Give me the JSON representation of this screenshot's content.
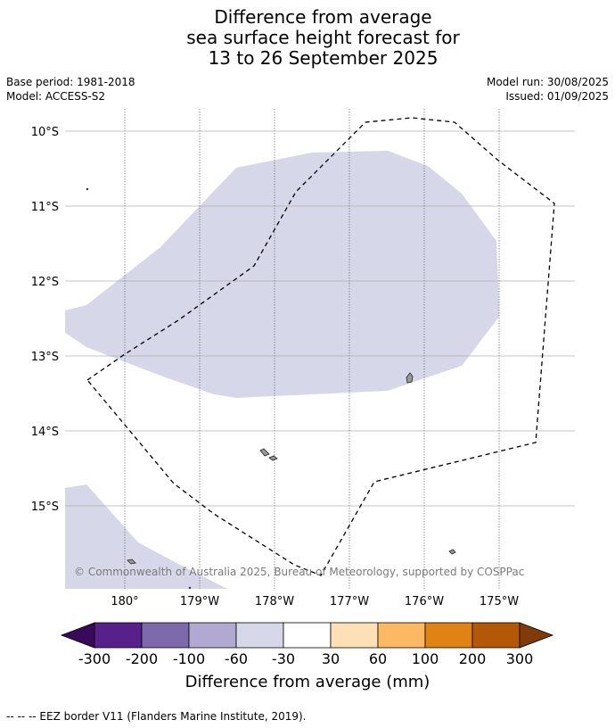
{
  "title": {
    "line1": "Difference from average",
    "line2": "sea surface height forecast for",
    "line3": "13 to 26 September 2025"
  },
  "meta": {
    "base_period": "Base period: 1981-2018",
    "model": "Model: ACCESS-S2",
    "model_run": "Model run: 30/08/2025",
    "issued": "Issued: 01/09/2025"
  },
  "map": {
    "lat_labels": [
      "10°S",
      "11°S",
      "12°S",
      "13°S",
      "14°S",
      "15°S"
    ],
    "lon_labels": [
      "180°",
      "179°W",
      "178°W",
      "177°W",
      "176°W",
      "175°W"
    ],
    "copyright": "© Commonwealth of Australia 2025, Bureau of Meteorology, supported by COSPPac",
    "anomaly_fill_color": "#d6d7e8",
    "anomaly_class": "-60 to -30"
  },
  "colorbar": {
    "labels": [
      "-300",
      "-200",
      "-100",
      "-60",
      "-30",
      "30",
      "60",
      "100",
      "200",
      "300"
    ],
    "under_color": "#3a0a5a",
    "over_color": "#7f3c0a",
    "colors": [
      "#57208a",
      "#7d6aad",
      "#b1a9d1",
      "#d6d7e8",
      "#ffffff",
      "#fee0b6",
      "#fdb863",
      "#e08214",
      "#b35806"
    ],
    "title": "Difference from average (mm)"
  },
  "footnote": "-- -- -- EEZ border V11 (Flanders Marine Institute, 2019)."
}
